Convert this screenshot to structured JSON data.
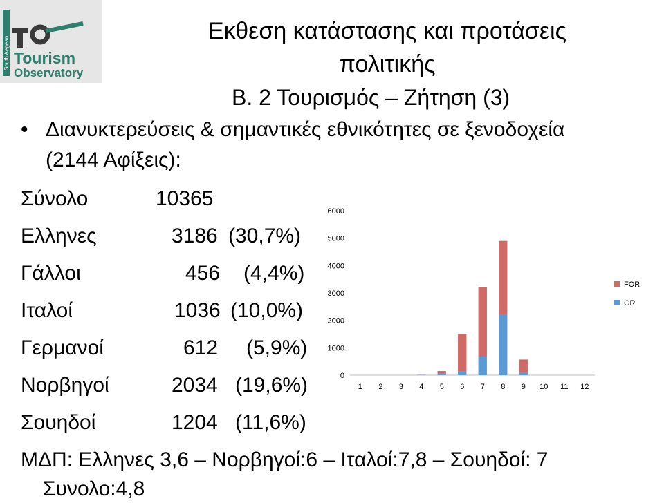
{
  "logo": {
    "side_text": "South Aegean",
    "word1": "Tourism",
    "word2": "Observatory",
    "colors": {
      "bg": "#e8e8e8",
      "green": "#2e7f6e",
      "dark": "#3a3a3a"
    }
  },
  "header": {
    "title_line1": "Εκθεση κατάστασης και προτάσεις",
    "title_line2": "πολιτικής",
    "subtitle": "Β. 2 Τουρισμός – Ζήτηση (3)"
  },
  "bullet": {
    "symbol": "•",
    "line1": "Διανυκτερεύσεις & σημαντικές εθνικότητες σε ξενοδοχεία",
    "line2": "(2144 Αφίξεις):"
  },
  "stats": [
    {
      "label": "Σύνολο",
      "value": "10365",
      "pct": ""
    },
    {
      "label": "Ελληνες",
      "value": "3186",
      "pct": "(30,7%)"
    },
    {
      "label": "Γάλλοι",
      "value": "456",
      "pct": "(4,4%)"
    },
    {
      "label": "Ιταλοί",
      "value": "1036",
      "pct": "(10,0%)"
    },
    {
      "label": "Γερμανοί",
      "value": "612",
      "pct": "(5,9%)"
    },
    {
      "label": "Νορβηγοί",
      "value": "2034",
      "pct": "(19,6%)"
    },
    {
      "label": "Σουηδοί",
      "value": "1204",
      "pct": "(11,6%)"
    }
  ],
  "footer": {
    "line1": "ΜΔΠ: Ελληνες 3,6 – Νορβηγοί:6 – Ιταλοί:7,8 – Σουηδοί: 7",
    "line2": "Συνολο:4,8"
  },
  "chart_data": {
    "type": "bar",
    "stacked": true,
    "categories": [
      "1",
      "2",
      "3",
      "4",
      "5",
      "6",
      "7",
      "8",
      "9",
      "10",
      "11",
      "12"
    ],
    "series": [
      {
        "name": "GR",
        "color": "#5b9bd5",
        "values": [
          0,
          0,
          0,
          10,
          60,
          150,
          680,
          2220,
          90,
          0,
          0,
          0
        ]
      },
      {
        "name": "FOR",
        "color": "#d06a66",
        "values": [
          0,
          0,
          0,
          5,
          90,
          1350,
          2540,
          2680,
          480,
          0,
          0,
          0
        ]
      }
    ],
    "ylim": [
      0,
      6000
    ],
    "yticks": [
      0,
      1000,
      2000,
      3000,
      4000,
      5000,
      6000
    ],
    "legend_position": "right",
    "legend_order": [
      "FOR",
      "GR"
    ],
    "grid": false
  }
}
